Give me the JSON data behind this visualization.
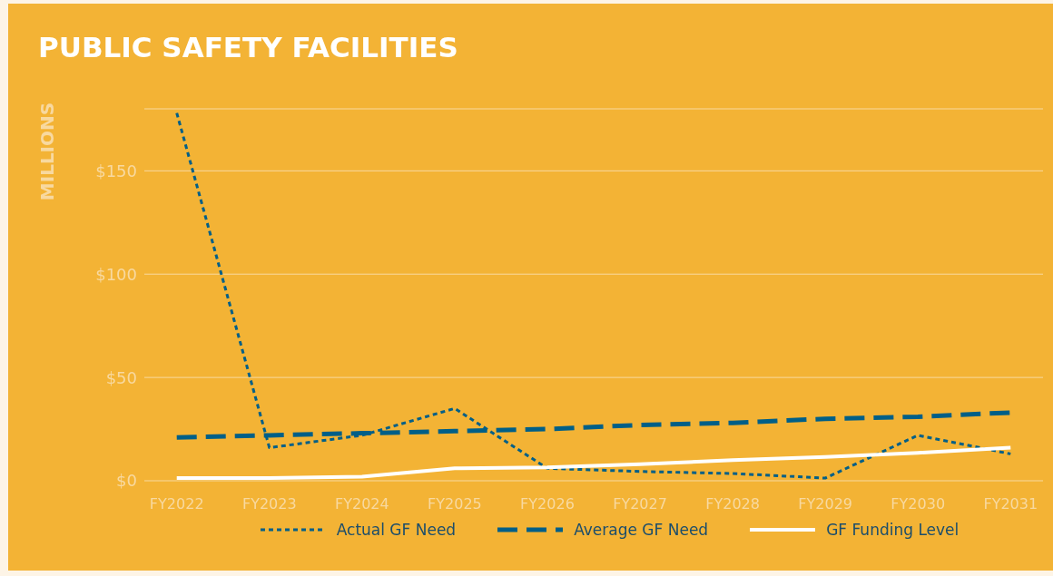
{
  "chart_data": {
    "type": "line",
    "title": "PUBLIC SAFETY FACILITIES",
    "ylabel": "MILLIONS",
    "categories": [
      "FY2022",
      "FY2023",
      "FY2024",
      "FY2025",
      "FY2026",
      "FY2027",
      "FY2028",
      "FY2029",
      "FY2030",
      "FY2031"
    ],
    "series": [
      {
        "name": "Actual GF Need",
        "color": "#005f87",
        "line_style": "dotted",
        "values": [
          178,
          16,
          22,
          35,
          6,
          4.5,
          3.5,
          1.3,
          22,
          13
        ]
      },
      {
        "name": "Average GF Need",
        "color": "#005f87",
        "line_style": "dashed",
        "values": [
          21,
          22,
          23,
          24,
          25,
          27,
          28,
          30,
          31,
          33
        ]
      },
      {
        "name": "GF Funding Level",
        "color": "#ffffff",
        "line_style": "solid",
        "values": [
          1.3,
          1.3,
          2,
          6,
          6.5,
          8,
          10,
          11.5,
          13.5,
          16
        ]
      }
    ],
    "ylim": [
      0,
      180
    ],
    "yticks": [
      {
        "value": 0,
        "label": "$0"
      },
      {
        "value": 50,
        "label": "$50"
      },
      {
        "value": 100,
        "label": "$100"
      },
      {
        "value": 150,
        "label": "$150"
      }
    ],
    "grid": "y",
    "legend": "bottom",
    "marker": "none"
  }
}
